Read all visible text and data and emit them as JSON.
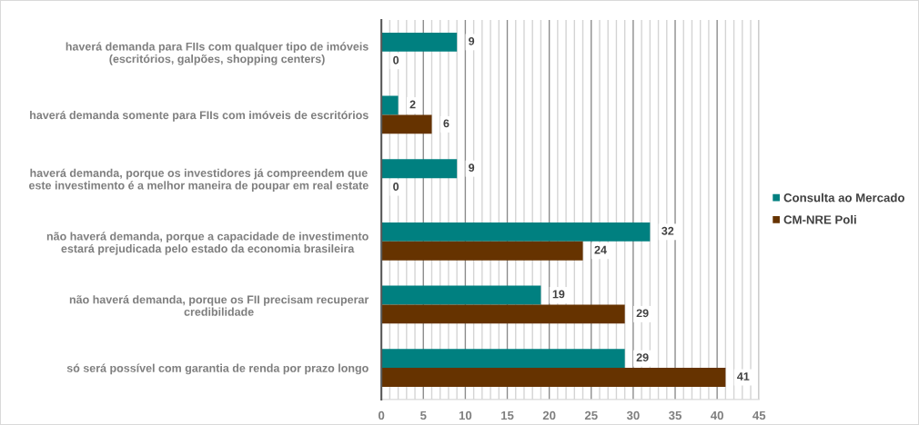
{
  "chart_data": {
    "type": "bar",
    "orientation": "horizontal",
    "categories": [
      "haverá demanda para FIIs com qualquer tipo de imóveis\n(escritórios, galpões, shopping centers)",
      "haverá demanda somente para FIIs com imóveis de escritórios",
      "haverá demanda, porque os investidores já compreendem que\neste investimento é a melhor maneira de poupar em real estate",
      "não haverá demanda, porque a capacidade de investimento\nestará prejudicada pelo estado da economia brasileira",
      "não haverá demanda, porque os FII precisam recuperar\ncredibilidade",
      "só será possível com garantia de renda por prazo longo"
    ],
    "series": [
      {
        "name": "Consulta ao Mercado",
        "color": "#008080",
        "values": [
          9,
          2,
          9,
          32,
          19,
          29
        ]
      },
      {
        "name": "CM-NRE Poli",
        "color": "#663300",
        "values": [
          0,
          6,
          0,
          24,
          29,
          41
        ]
      }
    ],
    "xlim": [
      0,
      45
    ],
    "xticks": [
      0,
      {
        "value": 1,
        "label": null
      },
      {
        "value": 2,
        "label": null
      },
      {
        "value": 3,
        "label": null
      },
      {
        "value": 4,
        "label": null
      },
      5,
      {
        "value": 6,
        "label": null
      },
      {
        "value": 7,
        "label": null
      },
      {
        "value": 8,
        "label": null
      },
      {
        "value": 9,
        "label": null
      },
      10,
      {
        "value": 11,
        "label": null
      },
      {
        "value": 12,
        "label": null
      },
      {
        "value": 13,
        "label": null
      },
      {
        "value": 14,
        "label": null
      },
      15,
      {
        "value": 16,
        "label": null
      },
      {
        "value": 17,
        "label": null
      },
      {
        "value": 18,
        "label": null
      },
      {
        "value": 19,
        "label": null
      },
      20,
      {
        "value": 21,
        "label": null
      },
      {
        "value": 22,
        "label": null
      },
      {
        "value": 23,
        "label": null
      },
      {
        "value": 24,
        "label": null
      },
      25,
      {
        "value": 26,
        "label": null
      },
      {
        "value": 27,
        "label": null
      },
      {
        "value": 28,
        "label": null
      },
      {
        "value": 29,
        "label": null
      },
      30,
      {
        "value": 31,
        "label": null
      },
      {
        "value": 32,
        "label": null
      },
      {
        "value": 33,
        "label": null
      },
      {
        "value": 34,
        "label": null
      },
      35,
      {
        "value": 36,
        "label": null
      },
      {
        "value": 37,
        "label": null
      },
      {
        "value": 38,
        "label": null
      },
      {
        "value": 39,
        "label": null
      },
      40,
      {
        "value": 41,
        "label": null
      },
      {
        "value": 42,
        "label": null
      },
      {
        "value": 43,
        "label": null
      },
      {
        "value": 44,
        "label": null
      },
      45
    ],
    "grid": "x",
    "legend": "right",
    "data_labels": true
  }
}
